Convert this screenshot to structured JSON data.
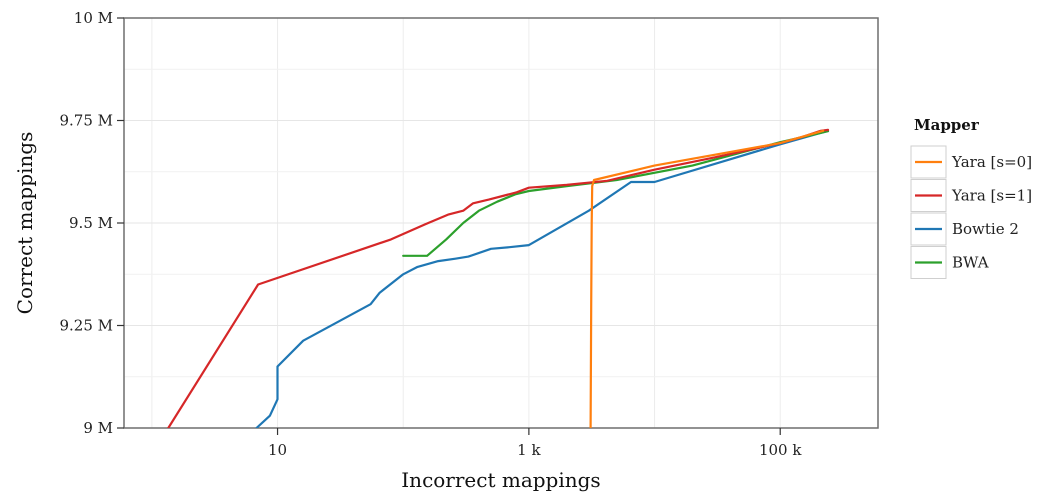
{
  "chart_data": {
    "type": "line",
    "title": "",
    "xlabel": "Incorrect mappings",
    "ylabel": "Correct mappings",
    "x_scale": "log10",
    "xlim": [
      0.6,
      600000
    ],
    "ylim": [
      9000000,
      10000000
    ],
    "x_ticks": [
      {
        "value": 10,
        "label": "10"
      },
      {
        "value": 1000,
        "label": "1 k"
      },
      {
        "value": 100000,
        "label": "100 k"
      }
    ],
    "y_ticks": [
      {
        "value": 9000000,
        "label": "9 M"
      },
      {
        "value": 9250000,
        "label": "9.25 M"
      },
      {
        "value": 9500000,
        "label": "9.5 M"
      },
      {
        "value": 9750000,
        "label": "9.75 M"
      },
      {
        "value": 10000000,
        "label": "10 M"
      }
    ],
    "grid": true,
    "legend": {
      "title": "Mapper",
      "placement": "right"
    },
    "series": [
      {
        "name": "Yara [s=0]",
        "color": "#ff7f0e",
        "points": [
          [
            3100,
            9000000
          ],
          [
            3130,
            9300000
          ],
          [
            3160,
            9500000
          ],
          [
            3190,
            9590000
          ],
          [
            3300,
            9605000
          ],
          [
            10000,
            9640000
          ],
          [
            100000,
            9695000
          ],
          [
            220000,
            9725000
          ]
        ]
      },
      {
        "name": "Yara [s=1]",
        "color": "#d62728",
        "points": [
          [
            1.35,
            9000000
          ],
          [
            7,
            9350000
          ],
          [
            80,
            9460000
          ],
          [
            150,
            9497000
          ],
          [
            230,
            9521000
          ],
          [
            300,
            9530000
          ],
          [
            360,
            9548000
          ],
          [
            480,
            9557000
          ],
          [
            640,
            9567000
          ],
          [
            800,
            9575000
          ],
          [
            1000,
            9586000
          ],
          [
            2000,
            9593000
          ],
          [
            4200,
            9603000
          ],
          [
            10000,
            9630000
          ],
          [
            30000,
            9660000
          ],
          [
            100000,
            9695000
          ],
          [
            150000,
            9710000
          ],
          [
            210000,
            9725000
          ],
          [
            240000,
            9727000
          ]
        ]
      },
      {
        "name": "Bowtie 2",
        "color": "#1f77b4",
        "points": [
          [
            6.8,
            9000000
          ],
          [
            8.7,
            9030000
          ],
          [
            10,
            9070000
          ],
          [
            10,
            9150000
          ],
          [
            16,
            9213000
          ],
          [
            55,
            9302000
          ],
          [
            65,
            9330000
          ],
          [
            100,
            9375000
          ],
          [
            130,
            9393000
          ],
          [
            190,
            9407000
          ],
          [
            260,
            9413000
          ],
          [
            330,
            9418000
          ],
          [
            500,
            9437000
          ],
          [
            700,
            9441000
          ],
          [
            1000,
            9446000
          ],
          [
            3000,
            9530000
          ],
          [
            6500,
            9600000
          ],
          [
            10000,
            9600000
          ],
          [
            100000,
            9692000
          ],
          [
            240000,
            9725000
          ]
        ]
      },
      {
        "name": "BWA",
        "color": "#2ca02c",
        "points": [
          [
            100,
            9420000
          ],
          [
            155,
            9420000
          ],
          [
            220,
            9460000
          ],
          [
            300,
            9500000
          ],
          [
            400,
            9530000
          ],
          [
            560,
            9552000
          ],
          [
            780,
            9570000
          ],
          [
            1000,
            9578000
          ],
          [
            2000,
            9590000
          ],
          [
            5000,
            9605000
          ],
          [
            20000,
            9640000
          ],
          [
            100000,
            9697000
          ],
          [
            200000,
            9718000
          ],
          [
            240000,
            9724000
          ]
        ]
      }
    ]
  }
}
